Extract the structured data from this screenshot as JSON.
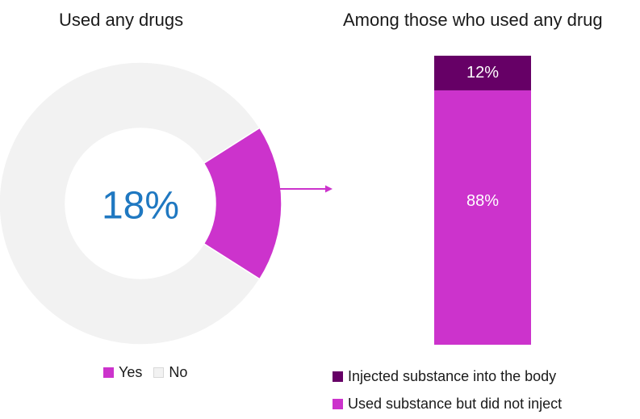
{
  "chart_data": [
    {
      "type": "pie",
      "title": "Used any drugs",
      "center_label": "18%",
      "categories": [
        "Yes",
        "No"
      ],
      "values": [
        18,
        82
      ],
      "colors": [
        "#cc33cc",
        "#f2f2f2"
      ],
      "legend": "bottom"
    },
    {
      "type": "bar",
      "stacked": true,
      "title": "Among those who used any drug",
      "series": [
        {
          "name": "Injected substance into the body",
          "values": [
            12
          ],
          "label": "12%",
          "color": "#660066"
        },
        {
          "name": "Used substance but did not inject",
          "values": [
            88
          ],
          "label": "88%",
          "color": "#cc33cc"
        }
      ],
      "ylim": [
        0,
        100
      ],
      "legend": "bottom"
    }
  ],
  "colors": {
    "arrow": "#cc33cc",
    "center_label": "#1f78c1",
    "bar_label": "#ffffff"
  }
}
